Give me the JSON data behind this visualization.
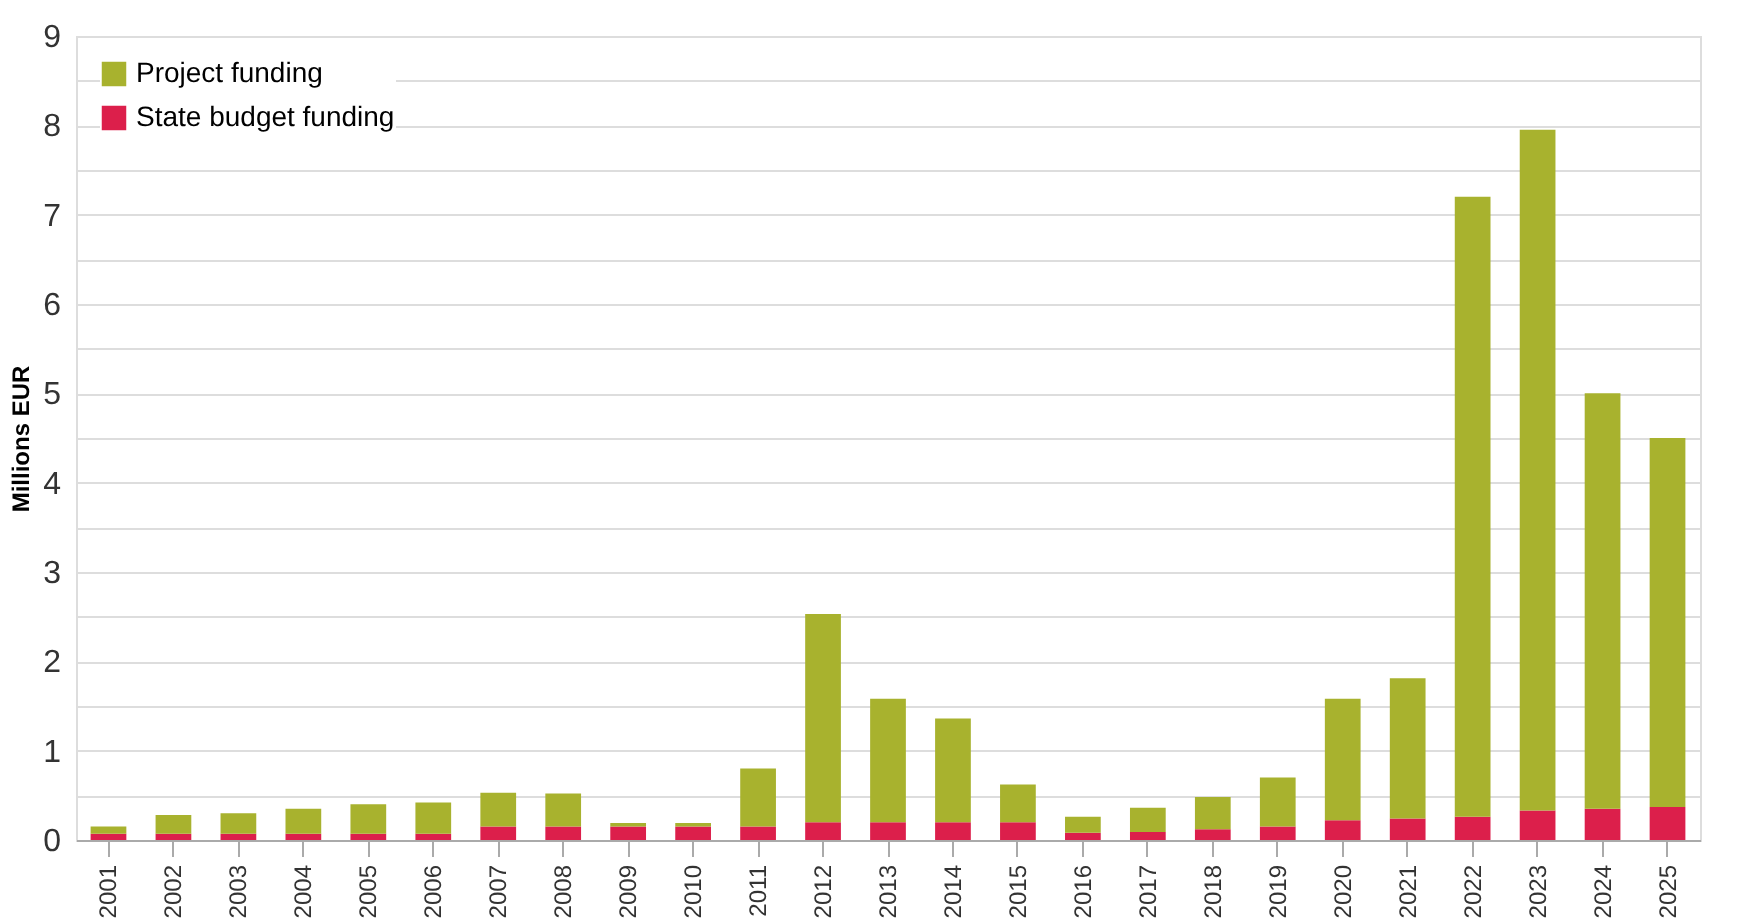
{
  "chart_data": {
    "type": "bar",
    "stacked": true,
    "ylabel": "Millions EUR",
    "categories": [
      "2001",
      "2002",
      "2003",
      "2004",
      "2005",
      "2006",
      "2007",
      "2008",
      "2009",
      "2010",
      "2011",
      "2012",
      "2013",
      "2014",
      "2015",
      "2016",
      "2017",
      "2018",
      "2019",
      "2020",
      "2021",
      "2022",
      "2023",
      "2024",
      "2025"
    ],
    "series": [
      {
        "name": "State budget funding",
        "color": "#dc1f4b",
        "values": [
          0.07,
          0.07,
          0.07,
          0.07,
          0.07,
          0.07,
          0.15,
          0.15,
          0.15,
          0.15,
          0.15,
          0.2,
          0.2,
          0.2,
          0.2,
          0.08,
          0.09,
          0.12,
          0.15,
          0.22,
          0.24,
          0.26,
          0.33,
          0.35,
          0.37
        ]
      },
      {
        "name": "Project funding",
        "color": "#a8b22e",
        "values": [
          0.08,
          0.21,
          0.23,
          0.28,
          0.33,
          0.35,
          0.38,
          0.37,
          0.04,
          0.04,
          0.65,
          2.33,
          1.38,
          1.16,
          0.42,
          0.18,
          0.27,
          0.36,
          0.55,
          1.36,
          1.57,
          6.94,
          7.62,
          4.65,
          4.13
        ]
      }
    ],
    "ylim": [
      0,
      9
    ],
    "yticks": [
      0,
      {
        "value": 0.5,
        "label": null
      },
      1,
      {
        "value": 1.5,
        "label": null
      },
      2,
      {
        "value": 2.5,
        "label": null
      },
      3,
      {
        "value": 3.5,
        "label": null
      },
      4,
      {
        "value": 4.5,
        "label": null
      },
      5,
      {
        "value": 5.5,
        "label": null
      },
      6,
      {
        "value": 6.5,
        "label": null
      },
      7,
      {
        "value": 7.5,
        "label": null
      },
      8,
      {
        "value": 8.5,
        "label": null
      },
      9
    ],
    "grid": true,
    "legend": "top left"
  }
}
